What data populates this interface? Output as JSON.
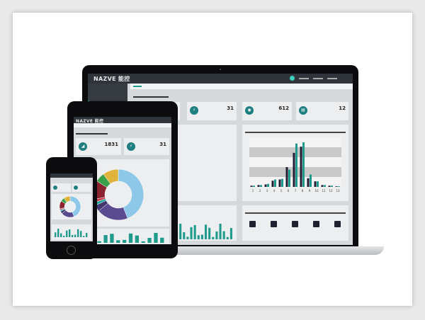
{
  "brand": "NAZVE 能控",
  "laptop": {
    "stats": [
      "1831",
      "31",
      "612",
      "12"
    ]
  },
  "tablet": {
    "stats": [
      "1831",
      "31"
    ]
  },
  "colors": {
    "accent": "#1f9a8c",
    "dark_bar": "#231d33",
    "nav": "#2f343a"
  },
  "chart_data": [
    {
      "type": "bar",
      "categories": [
        "1",
        "2",
        "3",
        "4",
        "5",
        "6",
        "7",
        "8",
        "9",
        "10",
        "11",
        "12",
        "13"
      ],
      "series": [
        {
          "values": [
            2,
            3,
            4,
            10,
            12,
            32,
            55,
            65,
            14,
            9,
            3,
            2,
            1
          ]
        },
        {
          "values": [
            2,
            3,
            5,
            12,
            13,
            28,
            70,
            72,
            20,
            9,
            3,
            2,
            1
          ]
        }
      ]
    },
    {
      "type": "pie",
      "values": [
        44,
        20,
        4,
        2,
        2,
        12,
        6,
        10
      ],
      "colors": [
        "#41376e",
        "#1fa59a",
        "#c63a4a",
        "#8a2230",
        "#3aa04a",
        "#e0b43c",
        "#8ec8e8",
        "#5a4a90"
      ]
    }
  ]
}
